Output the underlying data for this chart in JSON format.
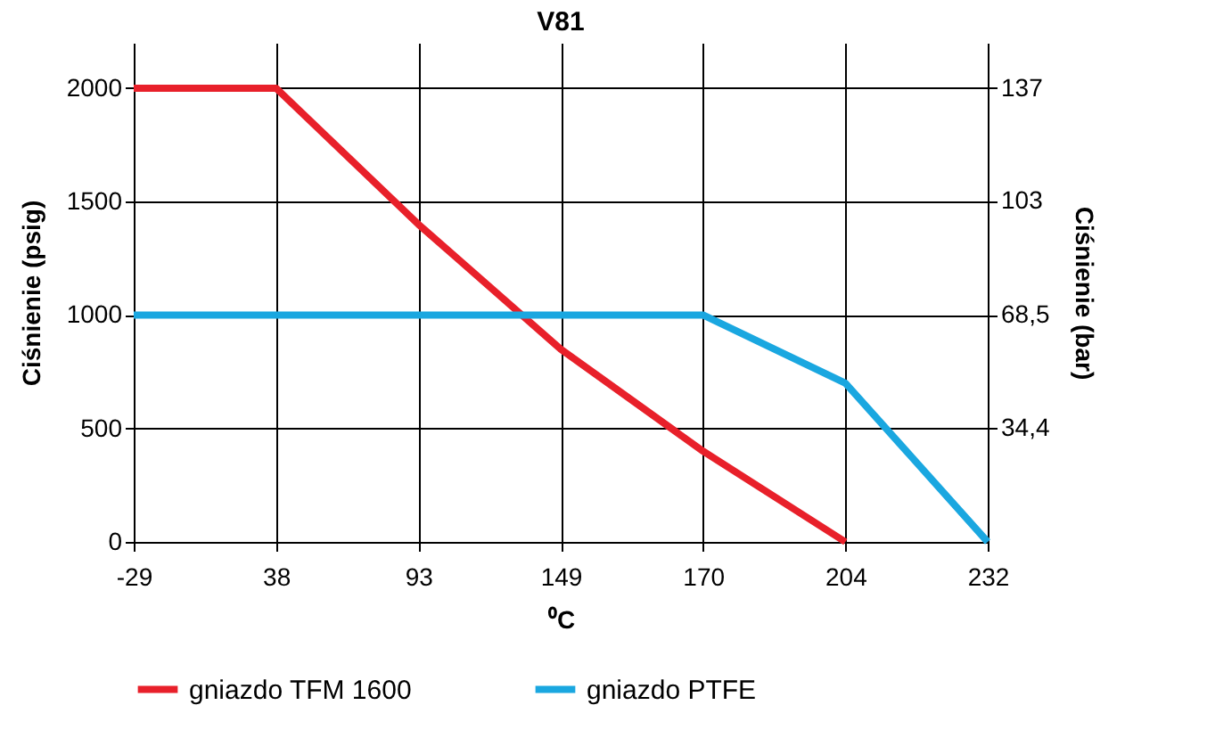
{
  "chart_data": {
    "type": "line",
    "title": "V81",
    "xlabel": "⁰C",
    "ylabel": "Ciśnienie (psig)",
    "y2label": "Ciśnienie (bar)",
    "categories": [
      "-29",
      "38",
      "93",
      "149",
      "170",
      "204",
      "232"
    ],
    "series": [
      {
        "name": "gniazdo TFM 1600",
        "color": "#e8202a",
        "values": [
          2000,
          2000,
          1400,
          850,
          400,
          0,
          null
        ]
      },
      {
        "name": "gniazdo PTFE",
        "color": "#1aa7e0",
        "values": [
          1000,
          1000,
          1000,
          1000,
          1000,
          700,
          0
        ]
      }
    ],
    "ylim": [
      0,
      2200
    ],
    "yticks": [
      0,
      500,
      1000,
      1500,
      2000
    ],
    "y2lim": [
      0,
      150.7
    ],
    "y2ticks": [
      {
        "value": 34.4,
        "label": "34,4"
      },
      {
        "value": 68.5,
        "label": "68,5"
      },
      103,
      137
    ],
    "grid": true,
    "legend": "bottom",
    "line_style": "solid",
    "marker": "none"
  }
}
